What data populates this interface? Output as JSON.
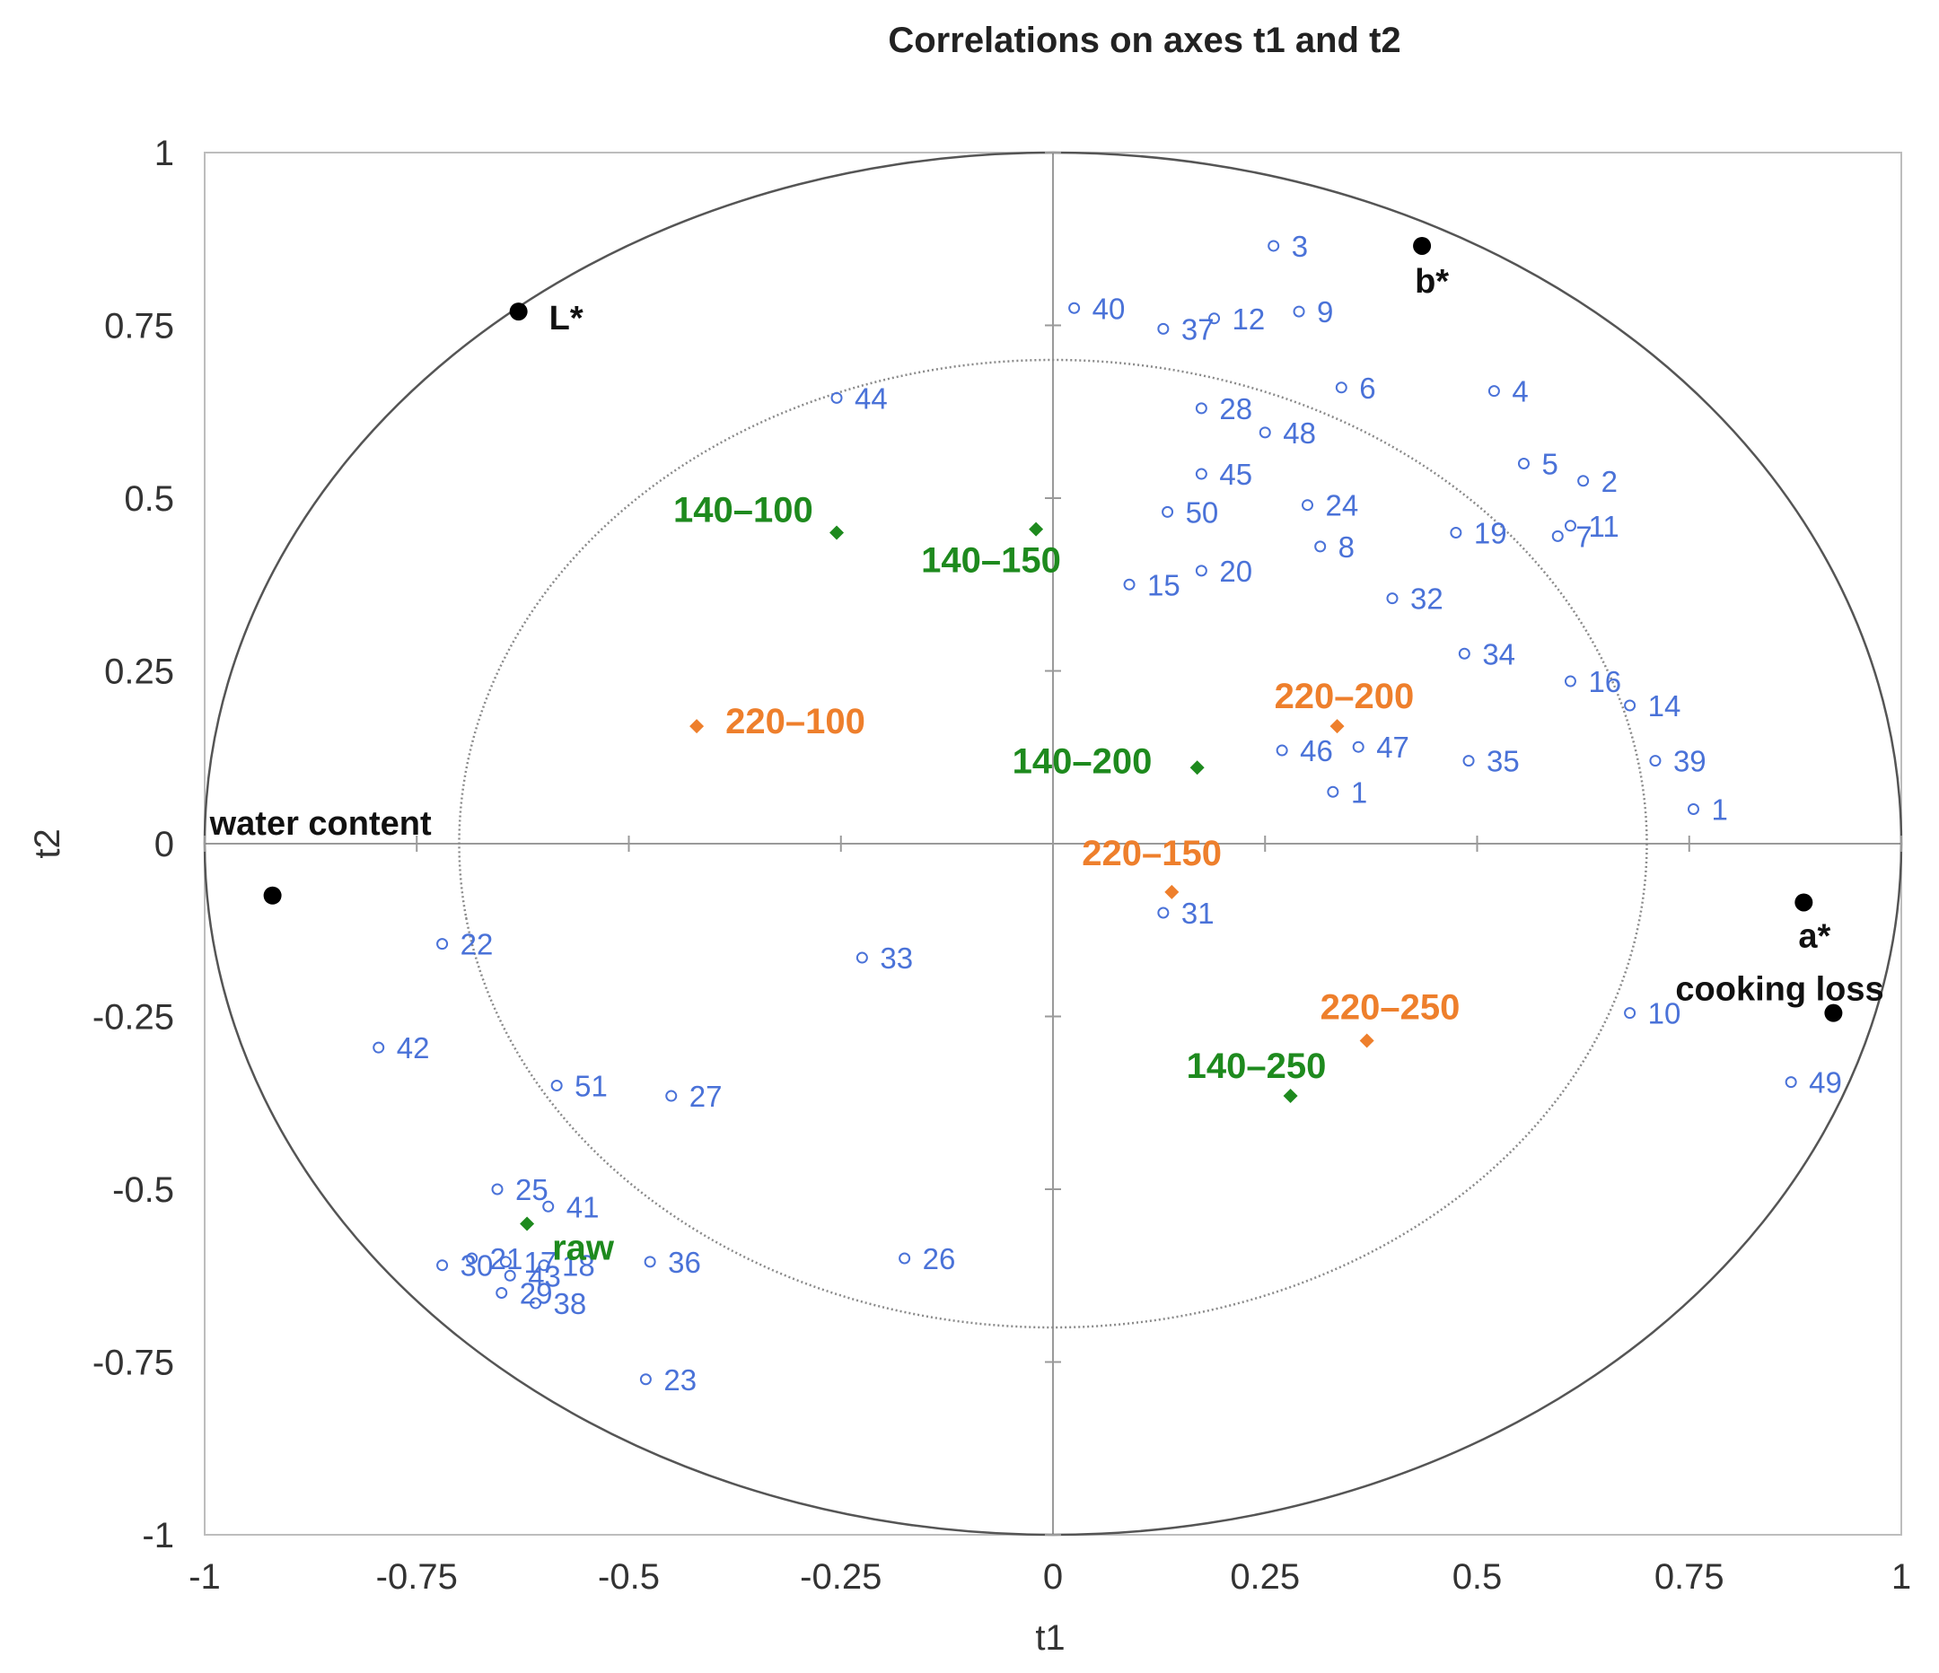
{
  "chart_data": {
    "type": "scatter",
    "title": "Correlations on axes t1 and t2",
    "xlabel": "t1",
    "ylabel": "t2",
    "xlim": [
      -1,
      1
    ],
    "ylim": [
      -1,
      1
    ],
    "xticks": [
      "-1",
      "-0.75",
      "-0.5",
      "-0.25",
      "0",
      "0.25",
      "0.5",
      "0.75",
      "1"
    ],
    "yticks": [
      "1",
      "0.75",
      "0.5",
      "0.25",
      "0",
      "-0.25",
      "-0.5",
      "-0.75",
      "-1"
    ],
    "circles": [
      {
        "name": "outer",
        "radius": 1.0,
        "style": "solid"
      },
      {
        "name": "inner",
        "radius": 0.7,
        "style": "dotted"
      }
    ],
    "colors": {
      "variables": "#000000",
      "observations": "#4a72d8",
      "green": "#1e8a1e",
      "orange": "#ee7f2c"
    },
    "variables": [
      {
        "label": "L*",
        "x": -0.63,
        "y": 0.77
      },
      {
        "label": "b*",
        "x": 0.435,
        "y": 0.865
      },
      {
        "label": "water content",
        "x": -0.92,
        "y": -0.075
      },
      {
        "label": "a*",
        "x": 0.885,
        "y": -0.085
      },
      {
        "label": "cooking loss",
        "x": 0.92,
        "y": -0.245
      }
    ],
    "treatments": [
      {
        "label": "140–100",
        "x": -0.255,
        "y": 0.45,
        "group": "green"
      },
      {
        "label": "140–150",
        "x": -0.02,
        "y": 0.455,
        "group": "green"
      },
      {
        "label": "140–200",
        "x": 0.17,
        "y": 0.11,
        "group": "green"
      },
      {
        "label": "140–250",
        "x": 0.28,
        "y": -0.365,
        "group": "green"
      },
      {
        "label": "raw",
        "x": -0.62,
        "y": -0.55,
        "group": "green"
      },
      {
        "label": "220–100",
        "x": -0.42,
        "y": 0.17,
        "group": "orange"
      },
      {
        "label": "220–200",
        "x": 0.335,
        "y": 0.17,
        "group": "orange"
      },
      {
        "label": "220–150",
        "x": 0.14,
        "y": -0.07,
        "group": "orange"
      },
      {
        "label": "220–250",
        "x": 0.37,
        "y": -0.285,
        "group": "orange"
      }
    ],
    "observations": [
      {
        "label": "1",
        "x": 0.33,
        "y": 0.075
      },
      {
        "label": "1",
        "x": 0.755,
        "y": 0.05
      },
      {
        "label": "2",
        "x": 0.625,
        "y": 0.525
      },
      {
        "label": "3",
        "x": 0.26,
        "y": 0.865
      },
      {
        "label": "4",
        "x": 0.52,
        "y": 0.655
      },
      {
        "label": "5",
        "x": 0.555,
        "y": 0.55
      },
      {
        "label": "6",
        "x": 0.34,
        "y": 0.66
      },
      {
        "label": "7",
        "x": 0.595,
        "y": 0.445
      },
      {
        "label": "8",
        "x": 0.315,
        "y": 0.43
      },
      {
        "label": "9",
        "x": 0.29,
        "y": 0.77
      },
      {
        "label": "10",
        "x": 0.68,
        "y": -0.245
      },
      {
        "label": "11",
        "x": 0.61,
        "y": 0.46
      },
      {
        "label": "12",
        "x": 0.19,
        "y": 0.76
      },
      {
        "label": "14",
        "x": 0.68,
        "y": 0.2
      },
      {
        "label": "15",
        "x": 0.09,
        "y": 0.375
      },
      {
        "label": "16",
        "x": 0.61,
        "y": 0.235
      },
      {
        "label": "17",
        "x": -0.645,
        "y": -0.605
      },
      {
        "label": "18",
        "x": -0.6,
        "y": -0.61
      },
      {
        "label": "19",
        "x": 0.475,
        "y": 0.45
      },
      {
        "label": "20",
        "x": 0.175,
        "y": 0.395
      },
      {
        "label": "21",
        "x": -0.685,
        "y": -0.6
      },
      {
        "label": "22",
        "x": -0.72,
        "y": -0.145
      },
      {
        "label": "23",
        "x": -0.48,
        "y": -0.775
      },
      {
        "label": "24",
        "x": 0.3,
        "y": 0.49
      },
      {
        "label": "25",
        "x": -0.655,
        "y": -0.5
      },
      {
        "label": "26",
        "x": -0.175,
        "y": -0.6
      },
      {
        "label": "27",
        "x": -0.45,
        "y": -0.365
      },
      {
        "label": "28",
        "x": 0.175,
        "y": 0.63
      },
      {
        "label": "29",
        "x": -0.65,
        "y": -0.65
      },
      {
        "label": "30",
        "x": -0.72,
        "y": -0.61
      },
      {
        "label": "31",
        "x": 0.13,
        "y": -0.1
      },
      {
        "label": "32",
        "x": 0.4,
        "y": 0.355
      },
      {
        "label": "33",
        "x": -0.225,
        "y": -0.165
      },
      {
        "label": "34",
        "x": 0.485,
        "y": 0.275
      },
      {
        "label": "35",
        "x": 0.49,
        "y": 0.12
      },
      {
        "label": "36",
        "x": -0.475,
        "y": -0.605
      },
      {
        "label": "37",
        "x": 0.13,
        "y": 0.745
      },
      {
        "label": "38",
        "x": -0.61,
        "y": -0.665
      },
      {
        "label": "39",
        "x": 0.71,
        "y": 0.12
      },
      {
        "label": "40",
        "x": 0.025,
        "y": 0.775
      },
      {
        "label": "41",
        "x": -0.595,
        "y": -0.525
      },
      {
        "label": "42",
        "x": -0.795,
        "y": -0.295
      },
      {
        "label": "43",
        "x": -0.64,
        "y": -0.625
      },
      {
        "label": "44",
        "x": -0.255,
        "y": 0.645
      },
      {
        "label": "45",
        "x": 0.175,
        "y": 0.535
      },
      {
        "label": "46",
        "x": 0.27,
        "y": 0.135
      },
      {
        "label": "47",
        "x": 0.36,
        "y": 0.14
      },
      {
        "label": "48",
        "x": 0.25,
        "y": 0.595
      },
      {
        "label": "49",
        "x": 0.87,
        "y": -0.345
      },
      {
        "label": "50",
        "x": 0.135,
        "y": 0.48
      },
      {
        "label": "51",
        "x": -0.585,
        "y": -0.35
      }
    ]
  }
}
